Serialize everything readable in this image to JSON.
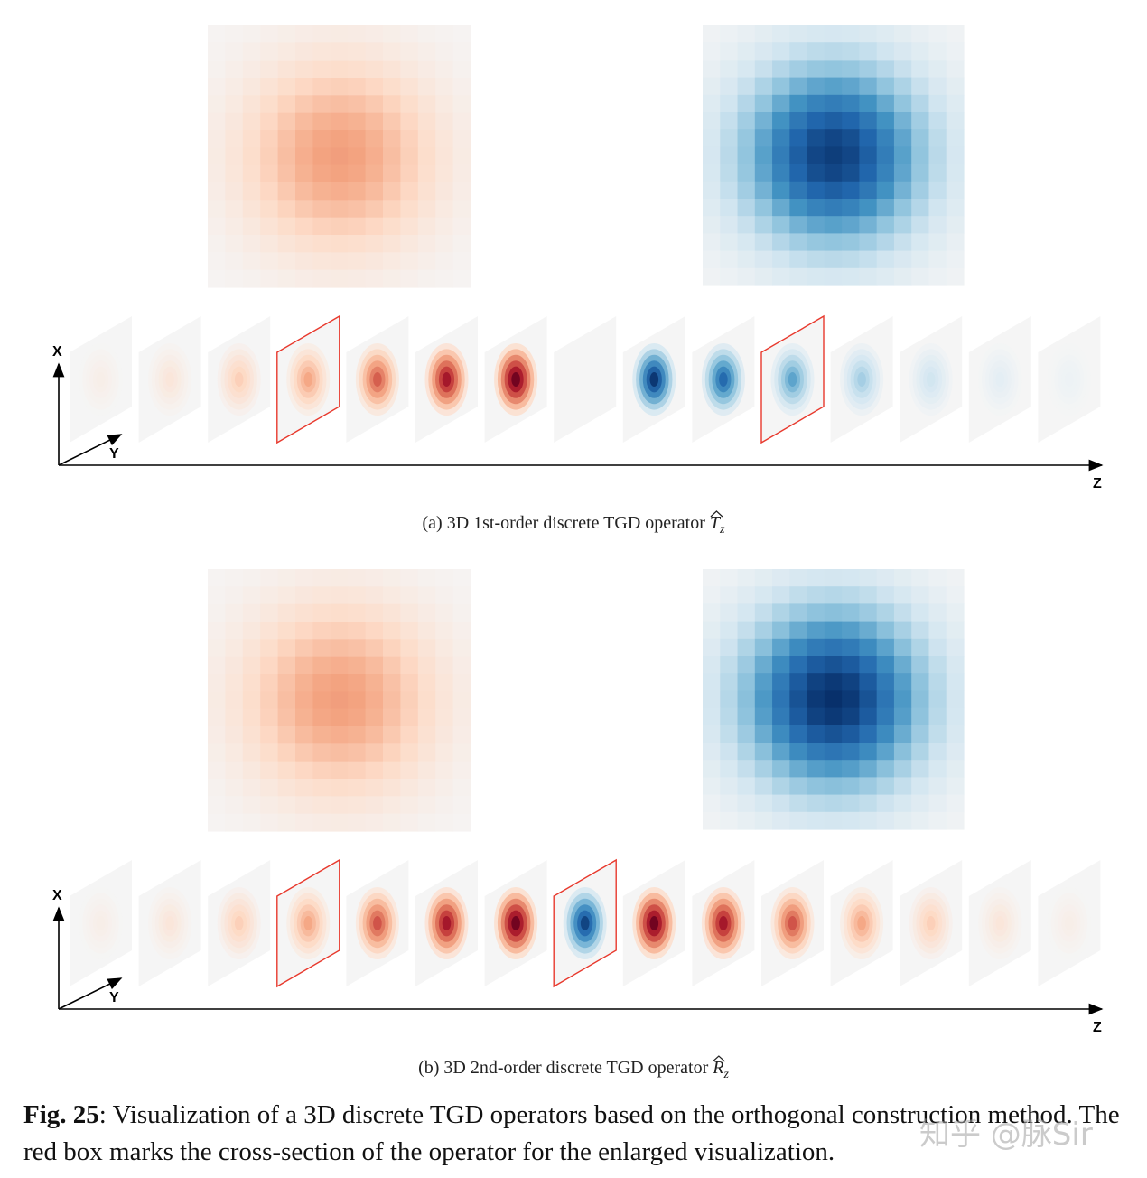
{
  "panels": [
    {
      "id": "a",
      "caption_prefix": "(a)  3D 1st-order discrete TGD operator ",
      "operator_symbol": "T",
      "operator_subscript": "z",
      "axes": {
        "x": "X",
        "y": "Y",
        "z": "Z"
      },
      "slices": [
        {
          "sign": 1,
          "intensity": 0.06
        },
        {
          "sign": 1,
          "intensity": 0.12
        },
        {
          "sign": 1,
          "intensity": 0.25
        },
        {
          "sign": 1,
          "intensity": 0.4,
          "highlighted": true
        },
        {
          "sign": 1,
          "intensity": 0.62
        },
        {
          "sign": 1,
          "intensity": 0.85
        },
        {
          "sign": 1,
          "intensity": 1.0
        },
        {
          "sign": 0,
          "intensity": 0.0
        },
        {
          "sign": -1,
          "intensity": 1.0
        },
        {
          "sign": -1,
          "intensity": 0.8
        },
        {
          "sign": -1,
          "intensity": 0.55,
          "highlighted": true
        },
        {
          "sign": -1,
          "intensity": 0.35
        },
        {
          "sign": -1,
          "intensity": 0.2
        },
        {
          "sign": -1,
          "intensity": 0.1
        },
        {
          "sign": -1,
          "intensity": 0.05
        }
      ],
      "enlarged": [
        {
          "sign": 1,
          "intensity": 0.42
        },
        {
          "sign": -1,
          "intensity": 0.95
        }
      ]
    },
    {
      "id": "b",
      "caption_prefix": "(b)  3D 2nd-order discrete TGD operator ",
      "operator_symbol": "R",
      "operator_subscript": "z",
      "axes": {
        "x": "X",
        "y": "Y",
        "z": "Z"
      },
      "slices": [
        {
          "sign": 1,
          "intensity": 0.06
        },
        {
          "sign": 1,
          "intensity": 0.12
        },
        {
          "sign": 1,
          "intensity": 0.25
        },
        {
          "sign": 1,
          "intensity": 0.4,
          "highlighted": true
        },
        {
          "sign": 1,
          "intensity": 0.65
        },
        {
          "sign": 1,
          "intensity": 0.85
        },
        {
          "sign": 1,
          "intensity": 1.0
        },
        {
          "sign": -1,
          "intensity": 0.95,
          "highlighted": true
        },
        {
          "sign": 1,
          "intensity": 1.0
        },
        {
          "sign": 1,
          "intensity": 0.85
        },
        {
          "sign": 1,
          "intensity": 0.65
        },
        {
          "sign": 1,
          "intensity": 0.4
        },
        {
          "sign": 1,
          "intensity": 0.25
        },
        {
          "sign": 1,
          "intensity": 0.12
        },
        {
          "sign": 1,
          "intensity": 0.06
        }
      ],
      "enlarged": [
        {
          "sign": 1,
          "intensity": 0.42
        },
        {
          "sign": -1,
          "intensity": 1.0
        }
      ]
    }
  ],
  "figure_caption": {
    "label": "Fig. 25",
    "text": ": Visualization of a 3D discrete TGD operators based on the orthogonal construction method. The red box marks the cross-section of the operator for the enlarged visualization."
  },
  "watermark": "知乎 @脉Sir",
  "colors": {
    "positive": "#b2182b",
    "negative": "#08306b",
    "highlight_box": "#e8392d",
    "background_cell": "#f5f5f5"
  }
}
